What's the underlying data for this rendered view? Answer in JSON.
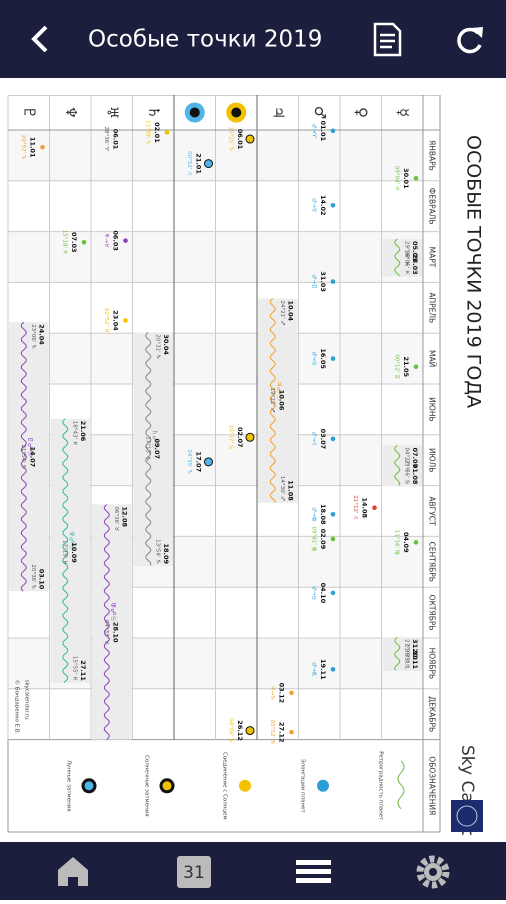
{
  "header": {
    "title": "Особые точки 2019"
  },
  "chart_data": {
    "type": "timeline",
    "title": "ОСОБЫЕ ТОЧКИ 2019 ГОДА",
    "brand": "Sky Calendar",
    "months": [
      "ЯНВАРЬ",
      "ФЕВРАЛЬ",
      "МАРТ",
      "АПРЕЛЬ",
      "МАЙ",
      "ИЮНЬ",
      "ИЮЛЬ",
      "АВГУСТ",
      "СЕНТЯБРЬ",
      "ОКТЯБРЬ",
      "НОЯБРЬ",
      "ДЕКАБРЬ"
    ],
    "legend_header": "ОБОЗНАЧЕНИЯ",
    "rows": [
      "☿",
      "♀",
      "♂",
      "♃",
      null,
      null,
      "♄",
      "♅",
      "♆",
      "♇"
    ],
    "events": [
      {
        "row": 0,
        "date": "30.01",
        "note": "09°04' ♒",
        "color": "#6abf3a"
      },
      {
        "row": 0,
        "date": "21.05",
        "note": "00°12' ♊",
        "color": "#6abf3a"
      },
      {
        "row": 0,
        "date": "04.09",
        "note": "11°16' ♍",
        "color": "#6abf3a"
      },
      {
        "row": 1,
        "date": "14.08",
        "note": "21°12' ♌",
        "color": "#e0452b"
      },
      {
        "row": 2,
        "date": "01.01",
        "note": "♂→♈",
        "color": "#2a9fd6"
      },
      {
        "row": 2,
        "date": "14.02",
        "note": "♂→♉",
        "color": "#2a9fd6"
      },
      {
        "row": 2,
        "date": "31.03",
        "note": "♂→♊",
        "color": "#2a9fd6"
      },
      {
        "row": 2,
        "date": "16.05",
        "note": "♂→♋",
        "color": "#2a9fd6"
      },
      {
        "row": 2,
        "date": "03.07",
        "note": "♂→♌",
        "color": "#2a9fd6"
      },
      {
        "row": 2,
        "date": "18.08",
        "note": "♂→♍",
        "color": "#2a9fd6"
      },
      {
        "row": 2,
        "date": "02.09",
        "note": "09°41' ♍",
        "color": "#6abf3a"
      },
      {
        "row": 2,
        "date": "04.10",
        "note": "♂→♎",
        "color": "#2a9fd6"
      },
      {
        "row": 2,
        "date": "19.11",
        "note": "♂→♏",
        "color": "#2a9fd6"
      },
      {
        "row": 3,
        "date": "10.06",
        "note": "19°22' ♐",
        "color": null
      },
      {
        "row": 3,
        "date": "03.12",
        "note": "♃→♑",
        "color": "#f0a030"
      },
      {
        "row": 3,
        "date": "27.12",
        "note": "05°52' ♑",
        "color": "#f0a030"
      },
      {
        "row": 4,
        "date": "06.01",
        "note": "15°25' ♑",
        "color": "#f2c200"
      },
      {
        "row": 4,
        "date": "02.07",
        "note": "10°37' ♋",
        "color": "#f2c200"
      },
      {
        "row": 4,
        "date": "26.12",
        "note": "04°06' ♑",
        "color": "#f2c200"
      },
      {
        "row": 5,
        "date": "21.01",
        "note": "00°52' ♌",
        "color": "#4fb4e6"
      },
      {
        "row": 5,
        "date": "17.07",
        "note": "24°35' ♑",
        "color": "#4fb4e6"
      },
      {
        "row": 6,
        "date": "02.01",
        "note": "11°39' ♑",
        "color": "#f2c200"
      },
      {
        "row": 6,
        "date": "09.07",
        "note": "17°13' ♑",
        "color": null
      },
      {
        "row": 7,
        "date": "06.01",
        "note": "28°36' ♈",
        "color": null
      },
      {
        "row": 7,
        "date": "06.03",
        "note": "♅→♉",
        "color": "#8a3fc0"
      },
      {
        "row": 7,
        "date": "23.04",
        "note": "02°52' ♉",
        "color": "#f2c200"
      },
      {
        "row": 7,
        "date": "28.10",
        "note": "04°33' ♉",
        "color": null
      },
      {
        "row": 8,
        "date": "07.03",
        "note": "15°18' ♓",
        "color": "#6abf3a"
      },
      {
        "row": 8,
        "date": "10.09",
        "note": "17°19' ♓",
        "color": null
      },
      {
        "row": 9,
        "date": "11.01",
        "note": "20°57' ♑",
        "color": "#f0a030"
      },
      {
        "row": 9,
        "date": "14.07",
        "note": "21°54' ♑",
        "color": null
      }
    ],
    "retrogrades": [
      {
        "row": 0,
        "start": "05.03",
        "start_note": "29°38' ♓",
        "end": "28.03",
        "end_note": "16°06' ♓",
        "color": "#6abf3a"
      },
      {
        "row": 0,
        "start": "07.07",
        "start_note": "04°27' ♌",
        "end": "01.08",
        "end_note": "23°56' ♋",
        "color": "#6abf3a"
      },
      {
        "row": 0,
        "start": "31.10",
        "start_note": "27°38' ♏",
        "end": "20.11",
        "end_note": "11°35' ♏",
        "color": "#6abf3a"
      },
      {
        "row": 3,
        "start": "10.04",
        "start_note": "24°21' ♐",
        "end": "11.08",
        "end_note": "14°30' ♐",
        "label": "♃☍☉",
        "color": "#f0a030"
      },
      {
        "row": 6,
        "start": "30.04",
        "start_note": "20°31' ♑",
        "end": "18.09",
        "end_note": "13°54' ♑",
        "label": "♄☍☉",
        "color": "#888888"
      },
      {
        "row": 7,
        "start": "12.08",
        "start_note": "06°36' ♉",
        "label": "♅☍☉",
        "color": "#8a3fc0"
      },
      {
        "row": 8,
        "start": "21.06",
        "start_note": "18°43' ♓",
        "end": "27.11",
        "end_note": "15°55' ♓",
        "label": "♆☍☉",
        "color": "#2fb8a0"
      },
      {
        "row": 9,
        "start": "24.04",
        "start_note": "23°06' ♑",
        "end": "03.10",
        "end_note": "20°36' ♑",
        "label": "♇☍☉",
        "color": "#8a3fc0"
      }
    ],
    "legend": [
      {
        "label": "Ретроградность планет",
        "color": "#6abf3a"
      },
      {
        "label": "Элонгации планет",
        "color": "#2a9fd6"
      },
      {
        "label": "Соединение с Солнцем",
        "color": "#f2c200"
      },
      {
        "label": "Солнечные затмения",
        "color": "#f2c200"
      },
      {
        "label": "Лунные затмения",
        "color": "#4fb4e6"
      }
    ],
    "credits": [
      "skycalendar.ru",
      "© Бондаренко Е.В."
    ]
  },
  "nav": {
    "calendar_day": "31"
  }
}
